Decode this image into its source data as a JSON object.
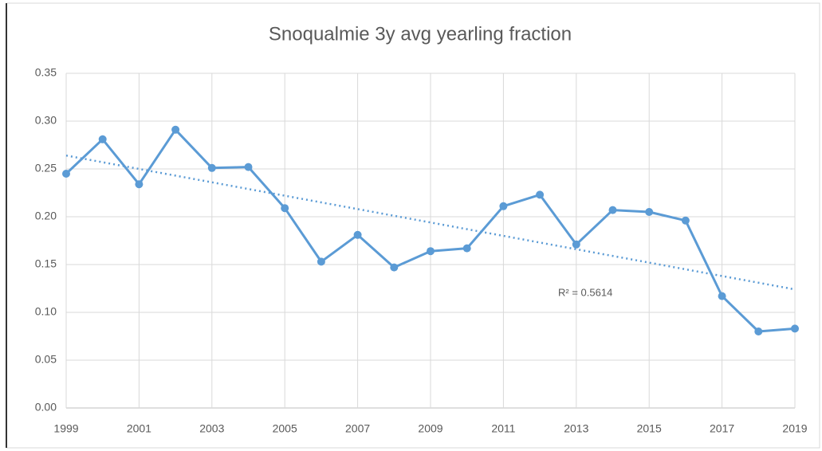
{
  "chart_data": {
    "type": "line",
    "title": "Snoqualmie 3y avg yearling fraction",
    "x": [
      1999,
      2000,
      2001,
      2002,
      2003,
      2004,
      2005,
      2006,
      2007,
      2008,
      2009,
      2010,
      2011,
      2012,
      2013,
      2014,
      2015,
      2016,
      2017,
      2018,
      2019
    ],
    "series": [
      {
        "color": "#5b9bd5",
        "values": [
          0.245,
          0.281,
          0.234,
          0.291,
          0.251,
          0.252,
          0.209,
          0.153,
          0.181,
          0.147,
          0.164,
          0.167,
          0.211,
          0.223,
          0.171,
          0.207,
          0.205,
          0.196,
          0.117,
          0.08,
          0.083
        ]
      }
    ],
    "trendline": {
      "x": [
        1999,
        2019
      ],
      "values": [
        0.264,
        0.124
      ],
      "color": "#5b9bd5",
      "annotation": "R² = 0.5614"
    },
    "xlim": [
      1999,
      2019
    ],
    "xticks": [
      1999,
      2001,
      2003,
      2005,
      2007,
      2009,
      2011,
      2013,
      2015,
      2017,
      2019
    ],
    "ylim": [
      0,
      0.35
    ],
    "yticks": [
      {
        "value": 0,
        "label": "0.00"
      },
      0.05,
      {
        "value": 0.1,
        "label": "0.10"
      },
      0.15,
      {
        "value": 0.2,
        "label": "0.20"
      },
      0.25,
      {
        "value": 0.3,
        "label": "0.30"
      },
      0.35
    ],
    "grid": true
  }
}
